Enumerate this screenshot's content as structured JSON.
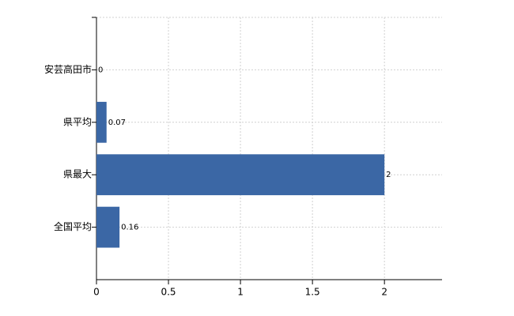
{
  "chart_data": {
    "type": "bar",
    "orientation": "horizontal",
    "categories": [
      "安芸高田市",
      "県平均",
      "県最大",
      "全国平均"
    ],
    "values": [
      0,
      0.07,
      2,
      0.16
    ],
    "color": "#3b67a5",
    "xlim": [
      0,
      2.4
    ],
    "xticks": [
      0,
      0.5,
      1,
      1.5,
      2
    ],
    "grid": true
  }
}
